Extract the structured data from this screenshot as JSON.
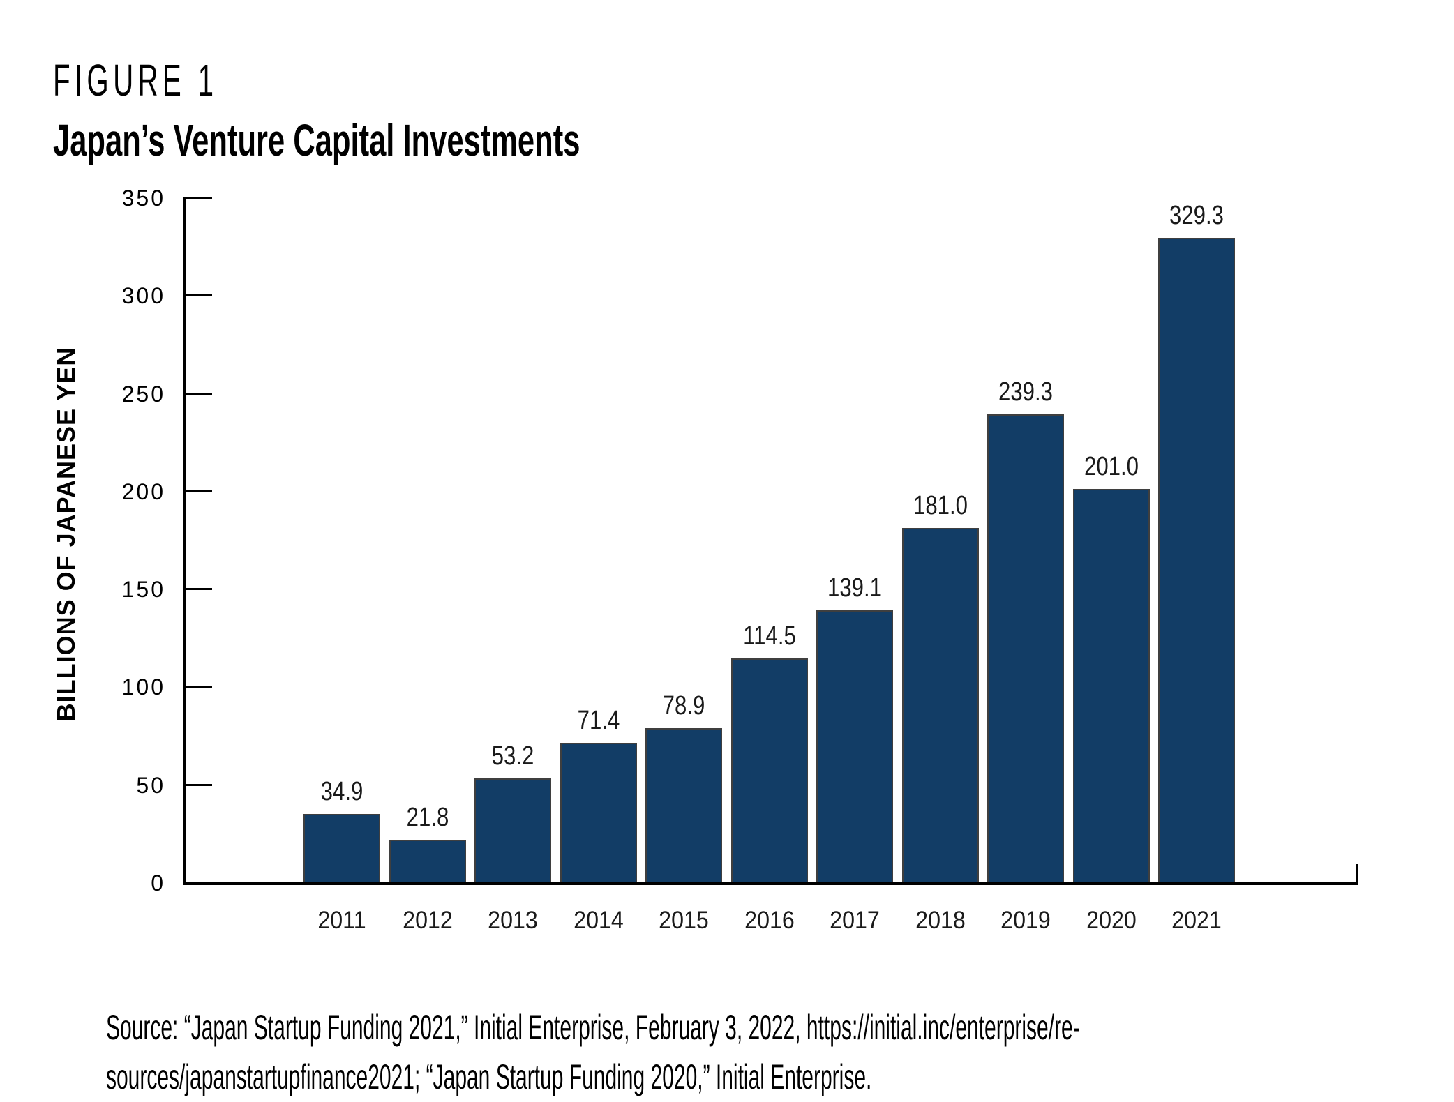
{
  "figure": {
    "label": "FIGURE 1",
    "title": "Japan’s Venture Capital Investments"
  },
  "chart_data": {
    "type": "bar",
    "title": "Japan’s Venture Capital Investments",
    "categories": [
      "2011",
      "2012",
      "2013",
      "2014",
      "2015",
      "2016",
      "2017",
      "2018",
      "2019",
      "2020",
      "2021"
    ],
    "values": [
      34.9,
      21.8,
      53.2,
      71.4,
      78.9,
      114.5,
      139.1,
      181.0,
      239.3,
      201.0,
      329.3
    ],
    "value_labels": [
      "34.9",
      "21.8",
      "53.2",
      "71.4",
      "78.9",
      "114.5",
      "139.1",
      "181.0",
      "239.3",
      "201.0",
      "329.3"
    ],
    "xlabel": "",
    "ylabel": "BILLIONS OF JAPANESE YEN",
    "ylim": [
      0,
      350
    ],
    "yticks": [
      0,
      50,
      100,
      150,
      200,
      250,
      300,
      350
    ],
    "grid": false,
    "legend": "none",
    "bar_color": "#123d66",
    "axis_color": "#000000",
    "label_color": "#1a1a1a"
  },
  "source": {
    "line1": "Source: “Japan Startup Funding 2021,” Initial Enterprise, February 3, 2022, https://initial.inc/enterprise/re-",
    "line2": "sources/japanstartupfinance2021; “Japan Startup Funding 2020,” Initial Enterprise."
  }
}
